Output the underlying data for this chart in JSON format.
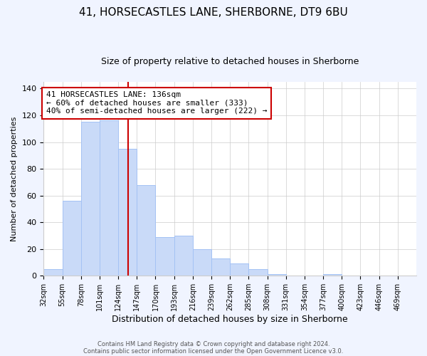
{
  "title": "41, HORSECASTLES LANE, SHERBORNE, DT9 6BU",
  "subtitle": "Size of property relative to detached houses in Sherborne",
  "xlabel": "Distribution of detached houses by size in Sherborne",
  "ylabel": "Number of detached properties",
  "bar_edges": [
    32,
    55,
    78,
    101,
    124,
    147,
    170,
    193,
    216,
    239,
    262,
    285,
    308,
    331,
    354,
    377,
    400,
    423,
    446,
    469,
    492
  ],
  "bar_heights": [
    5,
    56,
    115,
    116,
    95,
    68,
    29,
    30,
    20,
    13,
    9,
    5,
    1,
    0,
    0,
    1,
    0,
    0,
    0,
    0
  ],
  "bar_color": "#c9daf8",
  "bar_edgecolor": "#a4c2f4",
  "vline_x": 136,
  "vline_color": "#cc0000",
  "ylim": [
    0,
    145
  ],
  "annotation_text": "41 HORSECASTLES LANE: 136sqm\n← 60% of detached houses are smaller (333)\n40% of semi-detached houses are larger (222) →",
  "annotation_box_edgecolor": "#cc0000",
  "annotation_box_facecolor": "white",
  "footer_line1": "Contains HM Land Registry data © Crown copyright and database right 2024.",
  "footer_line2": "Contains public sector information licensed under the Open Government Licence v3.0.",
  "background_color": "#f0f4ff",
  "plot_background_color": "white",
  "grid_color": "#cccccc",
  "title_fontsize": 11,
  "subtitle_fontsize": 9,
  "tick_label_fontsize": 7,
  "ylabel_fontsize": 8,
  "xlabel_fontsize": 9
}
